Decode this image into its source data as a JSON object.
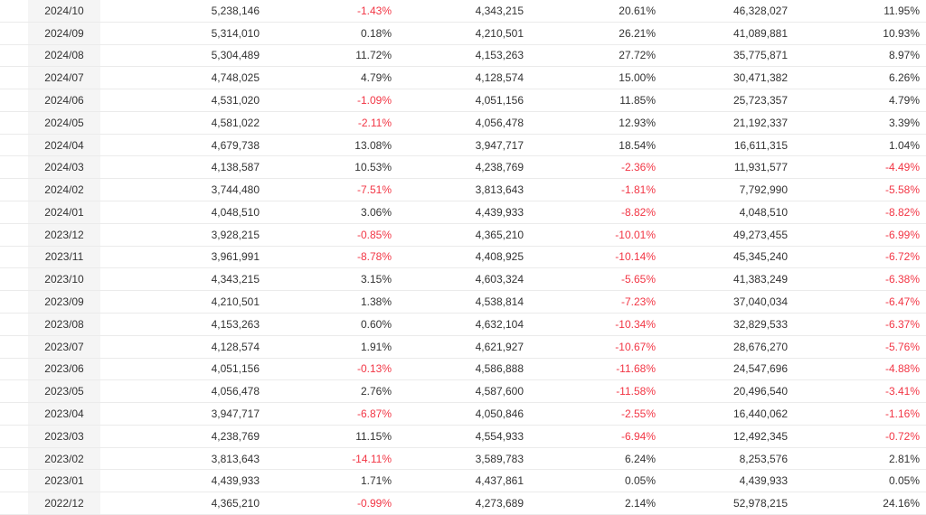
{
  "colors": {
    "text": "#333333",
    "negative_value": "#f23645",
    "row_border": "#ebebeb",
    "date_cell_bg": "#f5f5f5"
  },
  "table": {
    "column_semantics": [
      "month",
      "monthly-value",
      "mom-change-pct",
      "prior-year-month-value",
      "yoy-change-pct",
      "cumulative-value",
      "cumulative-yoy-change-pct"
    ],
    "rows": [
      {
        "date": "2024/10",
        "cells": [
          "5,238,146",
          "-1.43%",
          "4,343,215",
          "20.61%",
          "46,328,027",
          "11.95%"
        ]
      },
      {
        "date": "2024/09",
        "cells": [
          "5,314,010",
          "0.18%",
          "4,210,501",
          "26.21%",
          "41,089,881",
          "10.93%"
        ]
      },
      {
        "date": "2024/08",
        "cells": [
          "5,304,489",
          "11.72%",
          "4,153,263",
          "27.72%",
          "35,775,871",
          "8.97%"
        ]
      },
      {
        "date": "2024/07",
        "cells": [
          "4,748,025",
          "4.79%",
          "4,128,574",
          "15.00%",
          "30,471,382",
          "6.26%"
        ]
      },
      {
        "date": "2024/06",
        "cells": [
          "4,531,020",
          "-1.09%",
          "4,051,156",
          "11.85%",
          "25,723,357",
          "4.79%"
        ]
      },
      {
        "date": "2024/05",
        "cells": [
          "4,581,022",
          "-2.11%",
          "4,056,478",
          "12.93%",
          "21,192,337",
          "3.39%"
        ]
      },
      {
        "date": "2024/04",
        "cells": [
          "4,679,738",
          "13.08%",
          "3,947,717",
          "18.54%",
          "16,611,315",
          "1.04%"
        ]
      },
      {
        "date": "2024/03",
        "cells": [
          "4,138,587",
          "10.53%",
          "4,238,769",
          "-2.36%",
          "11,931,577",
          "-4.49%"
        ]
      },
      {
        "date": "2024/02",
        "cells": [
          "3,744,480",
          "-7.51%",
          "3,813,643",
          "-1.81%",
          "7,792,990",
          "-5.58%"
        ]
      },
      {
        "date": "2024/01",
        "cells": [
          "4,048,510",
          "3.06%",
          "4,439,933",
          "-8.82%",
          "4,048,510",
          "-8.82%"
        ]
      },
      {
        "date": "2023/12",
        "cells": [
          "3,928,215",
          "-0.85%",
          "4,365,210",
          "-10.01%",
          "49,273,455",
          "-6.99%"
        ]
      },
      {
        "date": "2023/11",
        "cells": [
          "3,961,991",
          "-8.78%",
          "4,408,925",
          "-10.14%",
          "45,345,240",
          "-6.72%"
        ]
      },
      {
        "date": "2023/10",
        "cells": [
          "4,343,215",
          "3.15%",
          "4,603,324",
          "-5.65%",
          "41,383,249",
          "-6.38%"
        ]
      },
      {
        "date": "2023/09",
        "cells": [
          "4,210,501",
          "1.38%",
          "4,538,814",
          "-7.23%",
          "37,040,034",
          "-6.47%"
        ]
      },
      {
        "date": "2023/08",
        "cells": [
          "4,153,263",
          "0.60%",
          "4,632,104",
          "-10.34%",
          "32,829,533",
          "-6.37%"
        ]
      },
      {
        "date": "2023/07",
        "cells": [
          "4,128,574",
          "1.91%",
          "4,621,927",
          "-10.67%",
          "28,676,270",
          "-5.76%"
        ]
      },
      {
        "date": "2023/06",
        "cells": [
          "4,051,156",
          "-0.13%",
          "4,586,888",
          "-11.68%",
          "24,547,696",
          "-4.88%"
        ]
      },
      {
        "date": "2023/05",
        "cells": [
          "4,056,478",
          "2.76%",
          "4,587,600",
          "-11.58%",
          "20,496,540",
          "-3.41%"
        ]
      },
      {
        "date": "2023/04",
        "cells": [
          "3,947,717",
          "-6.87%",
          "4,050,846",
          "-2.55%",
          "16,440,062",
          "-1.16%"
        ]
      },
      {
        "date": "2023/03",
        "cells": [
          "4,238,769",
          "11.15%",
          "4,554,933",
          "-6.94%",
          "12,492,345",
          "-0.72%"
        ]
      },
      {
        "date": "2023/02",
        "cells": [
          "3,813,643",
          "-14.11%",
          "3,589,783",
          "6.24%",
          "8,253,576",
          "2.81%"
        ]
      },
      {
        "date": "2023/01",
        "cells": [
          "4,439,933",
          "1.71%",
          "4,437,861",
          "0.05%",
          "4,439,933",
          "0.05%"
        ]
      },
      {
        "date": "2022/12",
        "cells": [
          "4,365,210",
          "-0.99%",
          "4,273,689",
          "2.14%",
          "52,978,215",
          "24.16%"
        ]
      }
    ]
  }
}
